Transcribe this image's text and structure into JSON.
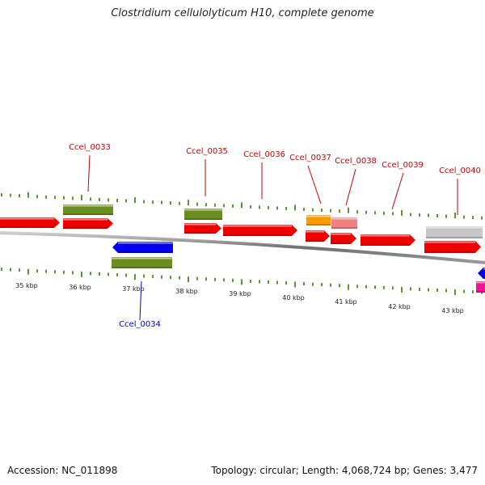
{
  "title": "Clostridium cellulolyticum H10, complete genome",
  "footer": {
    "accession": "Accession: NC_011898",
    "stats": "Topology: circular; Length: 4,068,724 bp; Genes: 3,477"
  },
  "colors": {
    "backbone": "#8a8a8a",
    "ticks": "#2e7d00",
    "label_forward": "#cc0000",
    "label_reverse": "#0000cc",
    "red": "#ee0000",
    "olive": "#6b8e23",
    "blue": "#0000ee",
    "orange": "#ff9900",
    "pink": "#f08080",
    "gray": "#c8c8c8",
    "magenta": "#ee1493"
  },
  "kbp_labels": [
    "35 kbp",
    "36 kbp",
    "37 kbp",
    "38 kbp",
    "39 kbp",
    "40 kbp",
    "41 kbp",
    "42 kbp",
    "43 kbp"
  ],
  "gene_labels": [
    {
      "name": "Ccel_0033",
      "strand": "forward"
    },
    {
      "name": "Ccel_0034",
      "strand": "reverse"
    },
    {
      "name": "Ccel_0035",
      "strand": "forward"
    },
    {
      "name": "Ccel_0036",
      "strand": "forward"
    },
    {
      "name": "Ccel_0037",
      "strand": "forward"
    },
    {
      "name": "Ccel_0038",
      "strand": "forward"
    },
    {
      "name": "Ccel_0039",
      "strand": "forward"
    },
    {
      "name": "Ccel_0040",
      "strand": "forward"
    }
  ]
}
